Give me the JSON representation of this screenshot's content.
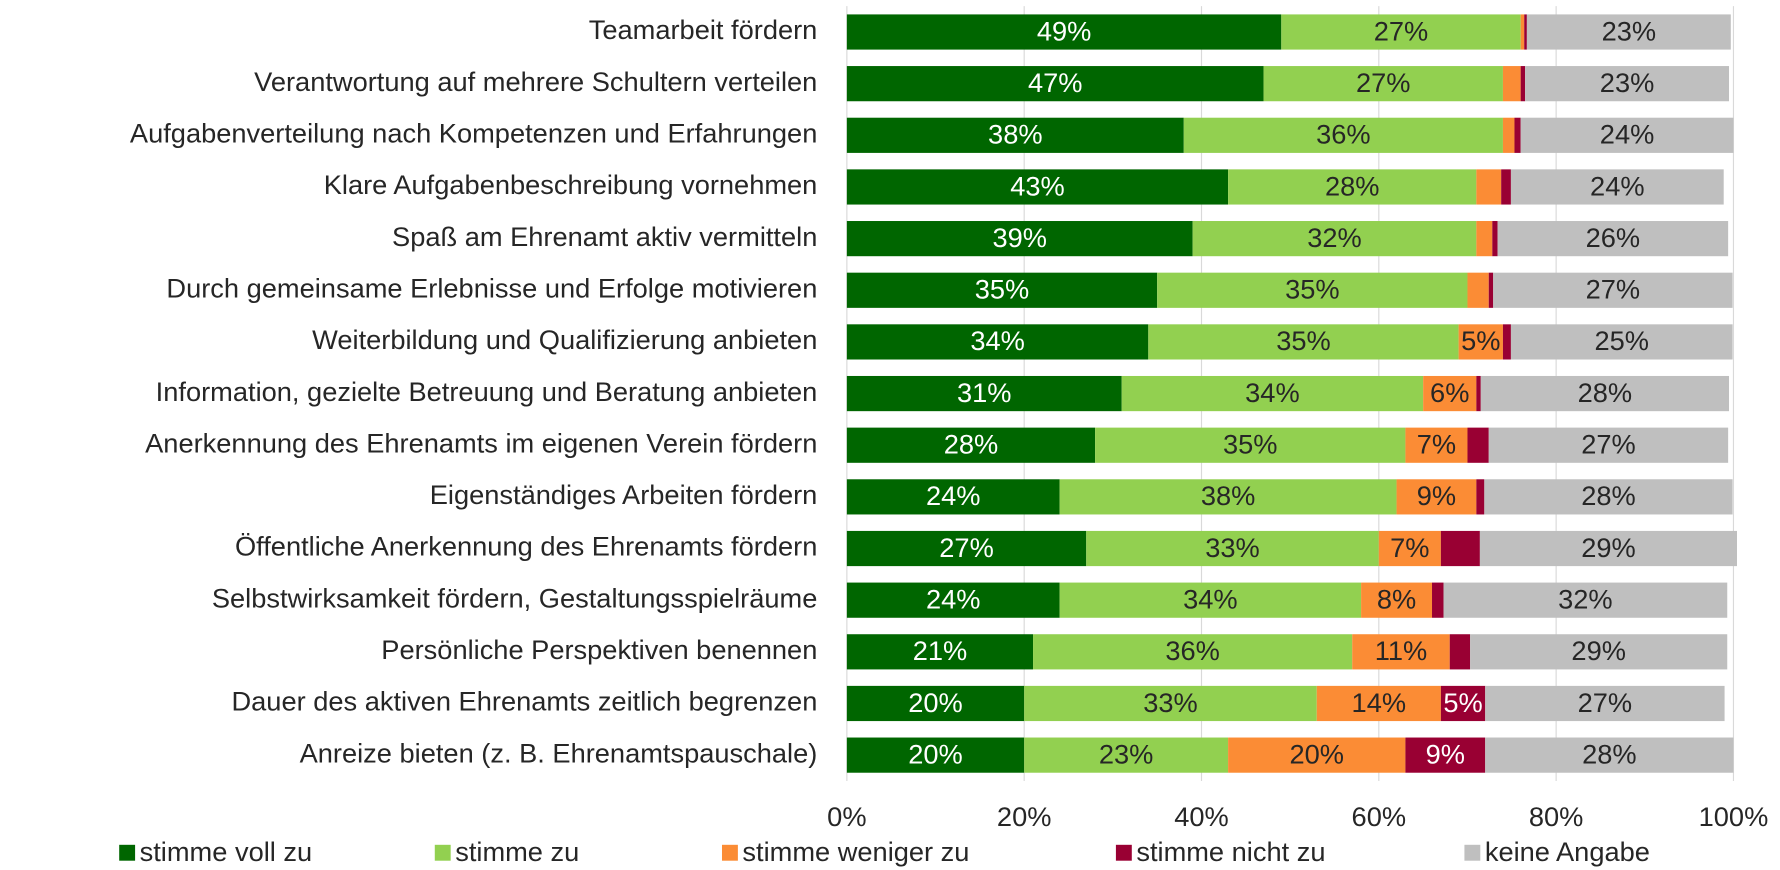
{
  "chart_data": {
    "type": "stacked-barh",
    "categories": [
      "Teamarbeit fördern",
      "Verantwortung auf mehrere Schultern verteilen",
      "Aufgabenverteilung nach Kompetenzen und Erfahrungen",
      "Klare Aufgabenbeschreibung vornehmen",
      "Spaß am Ehrenamt aktiv vermitteln",
      "Durch gemeinsame Erlebnisse und Erfolge motivieren",
      "Weiterbildung und Qualifizierung anbieten",
      "Information, gezielte Betreuung und Beratung anbieten",
      "Anerkennung des Ehrenamts im eigenen Verein fördern",
      "Eigenständiges Arbeiten fördern",
      "Öffentliche Anerkennung des Ehrenamts fördern",
      "Selbstwirksamkeit fördern, Gestaltungsspielräume",
      "Persönliche Perspektiven benennen",
      "Dauer des aktiven Ehrenamts zeitlich begrenzen",
      "Anreize bieten (z. B. Ehrenamtspauschale)"
    ],
    "series": [
      {
        "name": "stimme voll zu",
        "color": "#006600",
        "values": [
          49,
          47,
          38,
          43,
          39,
          35,
          34,
          31,
          28,
          24,
          27,
          24,
          21,
          20,
          20
        ],
        "value_labels": [
          "49%",
          "47%",
          "38%",
          "43%",
          "39%",
          "35%",
          "34%",
          "31%",
          "28%",
          "24%",
          "27%",
          "24%",
          "21%",
          "20%",
          "20%"
        ]
      },
      {
        "name": "stimme zu",
        "color": "#92d050",
        "values": [
          27,
          27,
          36,
          28,
          32,
          35,
          35,
          34,
          35,
          38,
          33,
          34,
          36,
          33,
          23
        ],
        "value_labels": [
          "27%",
          "27%",
          "36%",
          "28%",
          "32%",
          "35%",
          "35%",
          "34%",
          "35%",
          "38%",
          "33%",
          "34%",
          "36%",
          "33%",
          "23%"
        ]
      },
      {
        "name": "stimme weniger zu",
        "color": "#fb8c35",
        "values": [
          0.4,
          2.0,
          1.3,
          2.8,
          1.8,
          2.4,
          5,
          6,
          7,
          9,
          7,
          8,
          11,
          14,
          20
        ],
        "value_labels": [
          null,
          null,
          null,
          null,
          null,
          null,
          "5%",
          "6%",
          "7%",
          "9%",
          "7%",
          "8%",
          "11%",
          "14%",
          "20%"
        ]
      },
      {
        "name": "stimme nicht zu",
        "color": "#990033",
        "values": [
          0.3,
          0.5,
          0.7,
          1.1,
          0.6,
          0.5,
          0.9,
          0.5,
          2.4,
          0.9,
          4.4,
          1.3,
          2.3,
          5,
          9
        ],
        "value_labels": [
          null,
          null,
          null,
          null,
          null,
          null,
          null,
          null,
          null,
          null,
          null,
          null,
          null,
          "5%",
          "9%"
        ]
      },
      {
        "name": "keine Angabe",
        "color": "#bfbfbf",
        "values": [
          23,
          23,
          24,
          24,
          26,
          27,
          25,
          28,
          27,
          28,
          29,
          32,
          29,
          27,
          28
        ],
        "value_labels": [
          "23%",
          "23%",
          "24%",
          "24%",
          "26%",
          "27%",
          "25%",
          "28%",
          "27%",
          "28%",
          "29%",
          "32%",
          "29%",
          "27%",
          "28%"
        ]
      }
    ],
    "xlim": [
      0,
      100
    ],
    "xticks": [
      {
        "value": 0,
        "label": "0%"
      },
      {
        "value": 20,
        "label": "20%"
      },
      {
        "value": 40,
        "label": "40%"
      },
      {
        "value": 60,
        "label": "60%"
      },
      {
        "value": 80,
        "label": "80%"
      },
      {
        "value": 100,
        "label": "100%"
      }
    ],
    "grid": true,
    "legend": "bottom"
  }
}
